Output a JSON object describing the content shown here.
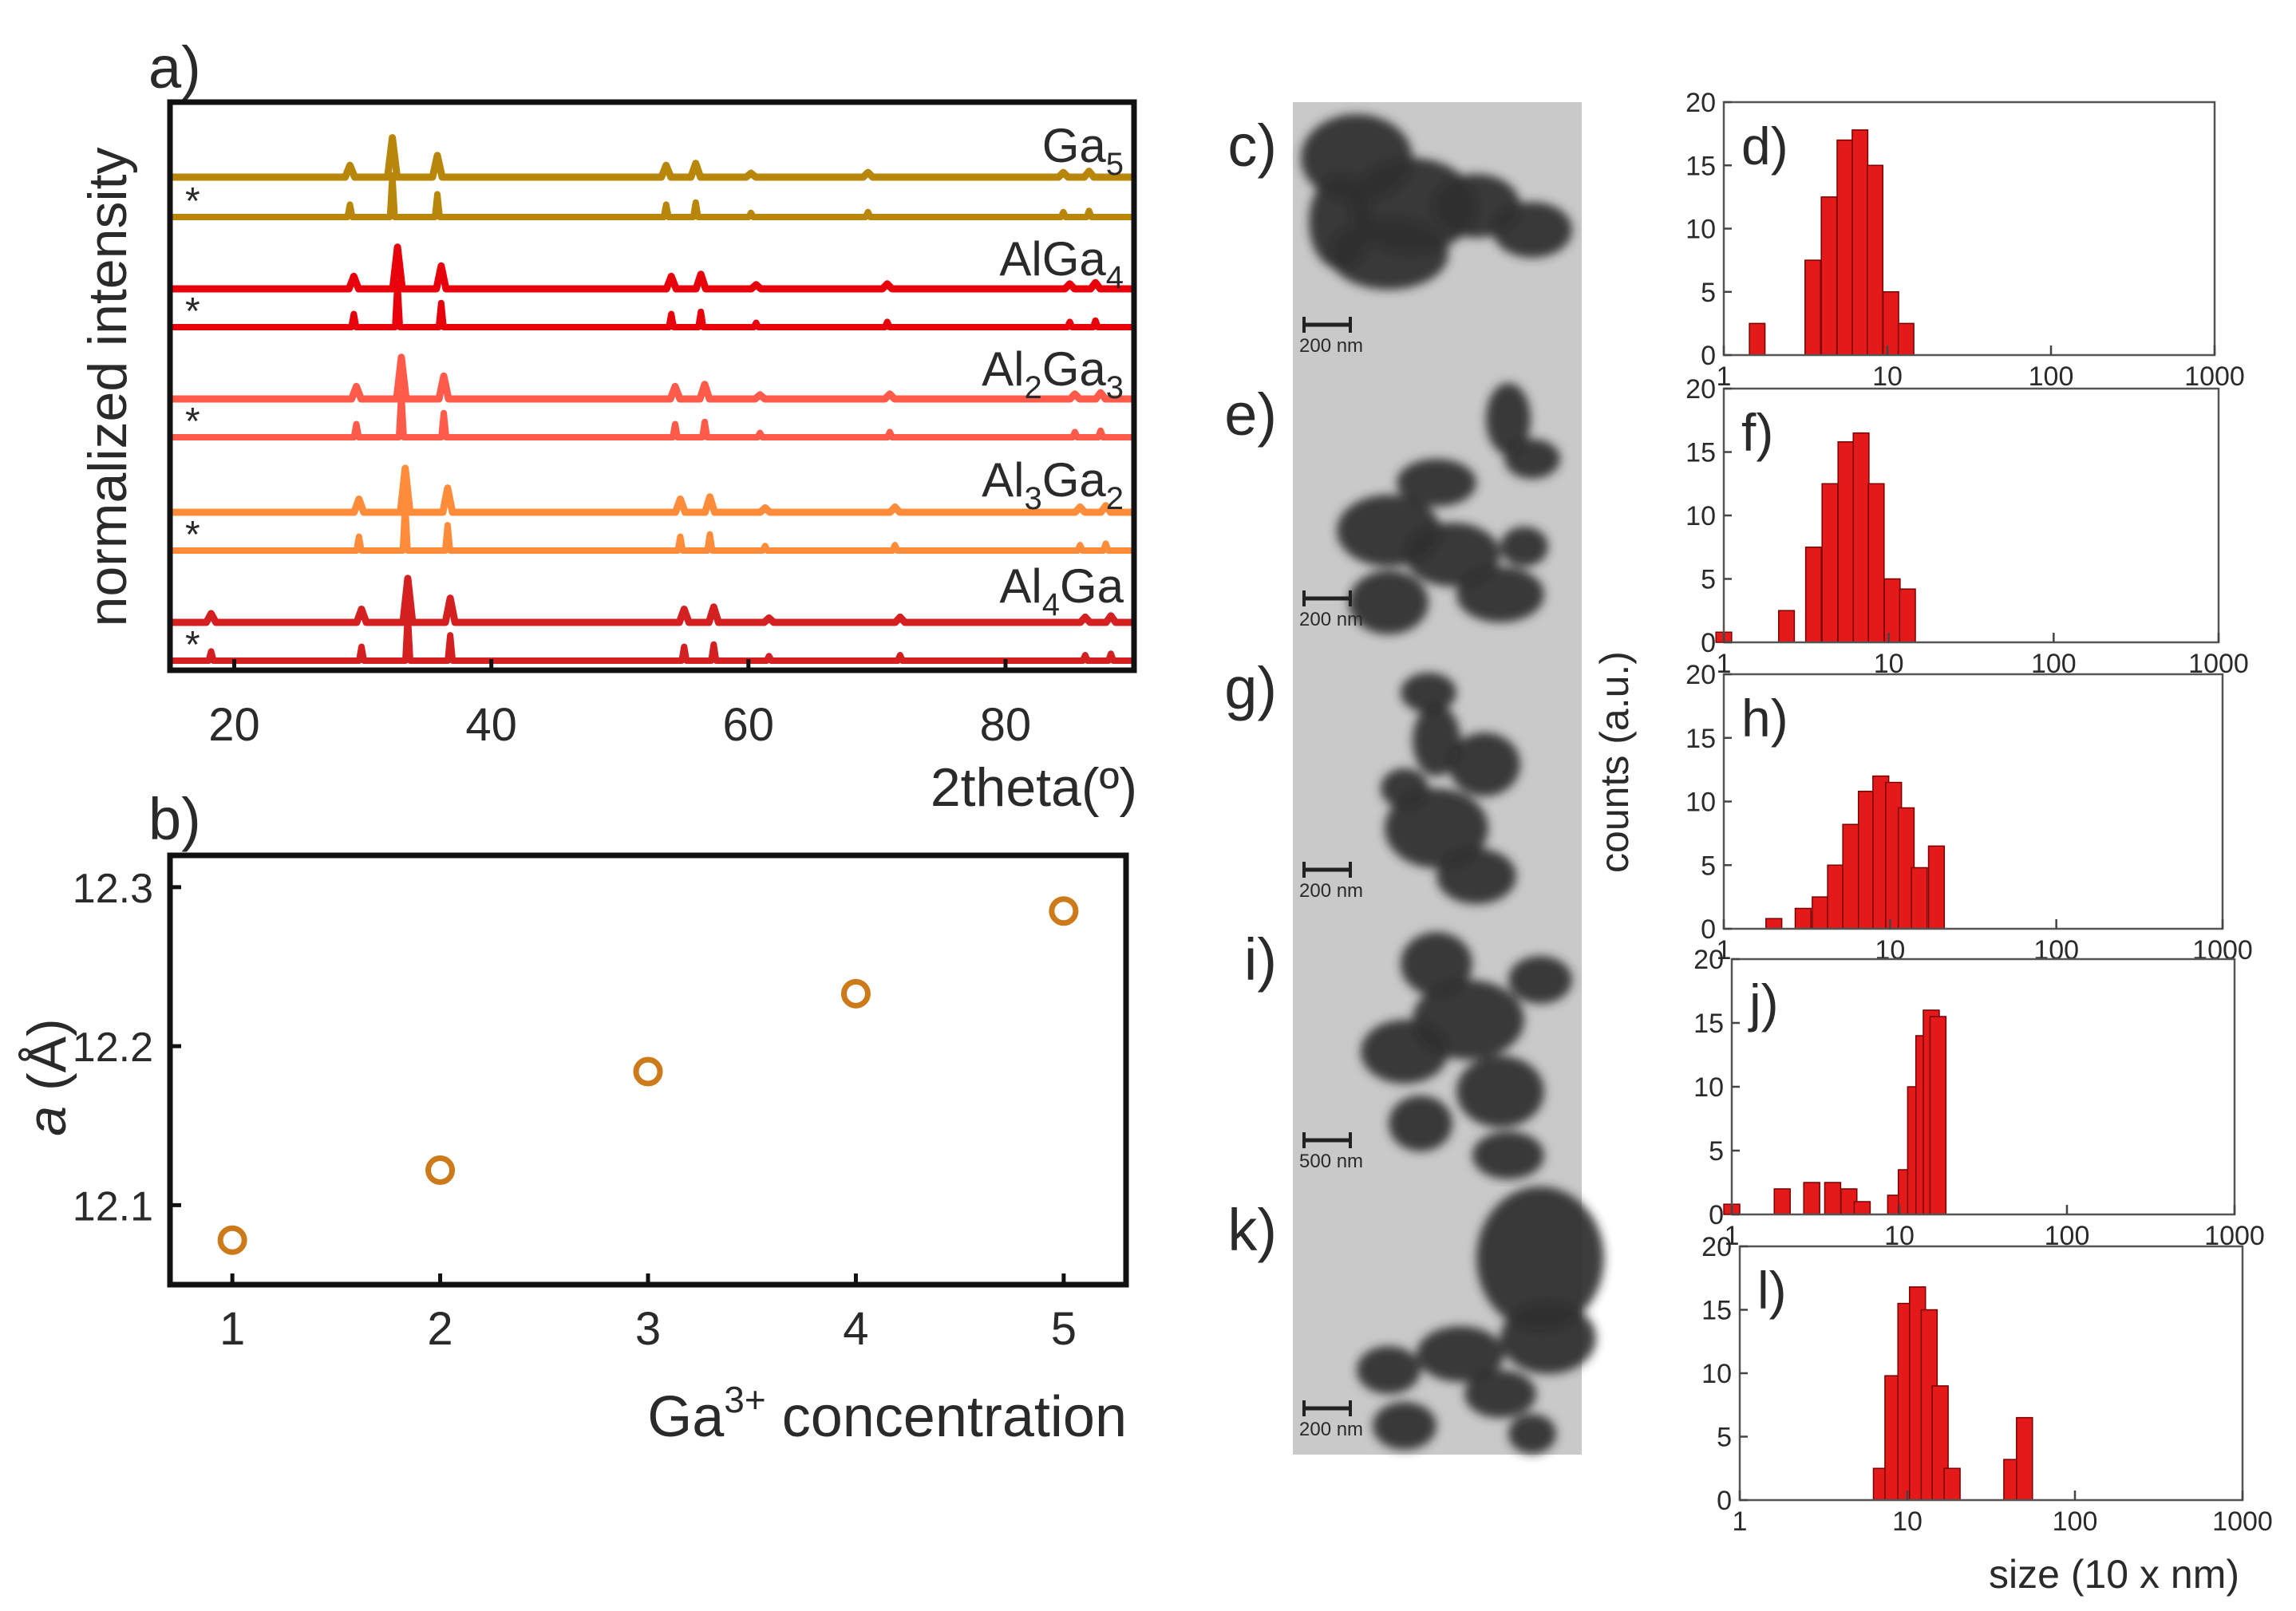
{
  "chart_data": [
    {
      "id": "a",
      "type": "line",
      "panel_label": "a)",
      "xlabel": "2theta(º)",
      "ylabel": "normalized intensity",
      "xlim": [
        15,
        90
      ],
      "xticks": [
        20,
        40,
        60,
        80
      ],
      "xtick_labels": [
        "20",
        "40",
        "60",
        "80"
      ],
      "reference_marker": "*",
      "series": [
        {
          "name": "Ga5",
          "label_base": "Ga",
          "label_sub": "5",
          "color": "#b8860b",
          "peaks": [
            [
              29.0,
              0.3
            ],
            [
              32.3,
              1.0
            ],
            [
              35.8,
              0.55
            ],
            [
              53.6,
              0.3
            ],
            [
              55.9,
              0.35
            ],
            [
              60.2,
              0.1
            ],
            [
              69.3,
              0.12
            ],
            [
              84.5,
              0.12
            ],
            [
              86.5,
              0.15
            ]
          ]
        },
        {
          "name": "AlGa4",
          "label_base": "AlGa",
          "label_sub": "4",
          "color": "#e8000b",
          "peaks": [
            [
              29.3,
              0.3
            ],
            [
              32.7,
              1.0
            ],
            [
              36.1,
              0.55
            ],
            [
              54.0,
              0.3
            ],
            [
              56.3,
              0.35
            ],
            [
              60.6,
              0.1
            ],
            [
              70.8,
              0.12
            ],
            [
              85.0,
              0.12
            ],
            [
              87.0,
              0.15
            ]
          ]
        },
        {
          "name": "Al2Ga3",
          "label_base": "Al",
          "label_sub": "2",
          "label_base2": "Ga",
          "label_sub2": "3",
          "color": "#ff5a4a",
          "peaks": [
            [
              29.5,
              0.3
            ],
            [
              33.0,
              1.0
            ],
            [
              36.3,
              0.55
            ],
            [
              54.3,
              0.3
            ],
            [
              56.6,
              0.35
            ],
            [
              60.9,
              0.1
            ],
            [
              71.0,
              0.12
            ],
            [
              85.4,
              0.12
            ],
            [
              87.4,
              0.15
            ]
          ]
        },
        {
          "name": "Al3Ga2",
          "label_base": "Al",
          "label_sub": "3",
          "label_base2": "Ga",
          "label_sub2": "2",
          "color": "#ff8c3a",
          "peaks": [
            [
              29.7,
              0.3
            ],
            [
              33.3,
              1.0
            ],
            [
              36.6,
              0.55
            ],
            [
              54.7,
              0.3
            ],
            [
              57.0,
              0.35
            ],
            [
              61.3,
              0.1
            ],
            [
              71.4,
              0.12
            ],
            [
              85.8,
              0.12
            ],
            [
              87.8,
              0.15
            ]
          ]
        },
        {
          "name": "Al4Ga",
          "label_base": "Al",
          "label_sub": "4",
          "label_base2": "Ga",
          "label_sub2": "",
          "color": "#d42020",
          "peaks": [
            [
              18.2,
              0.2
            ],
            [
              29.9,
              0.3
            ],
            [
              33.5,
              1.0
            ],
            [
              36.8,
              0.55
            ],
            [
              55.0,
              0.3
            ],
            [
              57.3,
              0.35
            ],
            [
              61.6,
              0.1
            ],
            [
              71.8,
              0.12
            ],
            [
              86.2,
              0.12
            ],
            [
              88.2,
              0.15
            ]
          ]
        }
      ]
    },
    {
      "id": "b",
      "type": "scatter",
      "panel_label": "b)",
      "xlabel_base": "Ga",
      "xlabel_sup": "3+",
      "xlabel_rest": " concentration",
      "ylabel_var": "a",
      "ylabel_unit": " (Å)",
      "xlim": [
        0.7,
        5.3
      ],
      "ylim": [
        12.05,
        12.32
      ],
      "xticks": [
        1,
        2,
        3,
        4,
        5
      ],
      "yticks": [
        12.1,
        12.2,
        12.3
      ],
      "ytick_labels": [
        "12.1",
        "12.2",
        "12.3"
      ],
      "x": [
        1,
        2,
        3,
        4,
        5
      ],
      "y": [
        12.078,
        12.122,
        12.184,
        12.233,
        12.285
      ],
      "marker_color": "#cc7a1a"
    },
    {
      "id": "d",
      "type": "bar",
      "panel_label": "d)",
      "xscale": "log",
      "xlim": [
        1,
        1000
      ],
      "ylim": [
        0,
        20
      ],
      "xticks": [
        1,
        10,
        100,
        1000
      ],
      "xtick_labels": [
        "1",
        "10",
        "100",
        "1000"
      ],
      "yticks": [
        0,
        5,
        10,
        15,
        20
      ],
      "ytick_labels": [
        "0",
        "5",
        "10",
        "15",
        "20"
      ],
      "bins": [
        1.6,
        2.5,
        3.5,
        4.4,
        5.5,
        6.8,
        8.4,
        10.5,
        13
      ],
      "values": [
        2.5,
        0,
        7.5,
        12.5,
        17,
        17.8,
        15,
        5,
        2.5
      ],
      "bar_color": "#e41a1a"
    },
    {
      "id": "f",
      "type": "bar",
      "panel_label": "f)",
      "xscale": "log",
      "xlim": [
        1,
        1000
      ],
      "ylim": [
        0,
        20
      ],
      "xticks": [
        1,
        10,
        100,
        1000
      ],
      "xtick_labels": [
        "1",
        "10",
        "100",
        "1000"
      ],
      "yticks": [
        0,
        5,
        10,
        15,
        20
      ],
      "ytick_labels": [
        "0",
        "5",
        "10",
        "15",
        "20"
      ],
      "bins": [
        1,
        2.4,
        3.5,
        4.4,
        5.5,
        6.8,
        8.4,
        10.5,
        13
      ],
      "values": [
        0.8,
        2.5,
        7.5,
        12.5,
        15.8,
        16.5,
        12.5,
        5,
        4.2
      ],
      "bar_color": "#e41a1a"
    },
    {
      "id": "h",
      "type": "bar",
      "panel_label": "h)",
      "xscale": "log",
      "xlim": [
        1,
        1000
      ],
      "ylim": [
        0,
        20
      ],
      "xticks": [
        1,
        10,
        100,
        1000
      ],
      "xtick_labels": [
        "1",
        "10",
        "100",
        "1000"
      ],
      "yticks": [
        0,
        5,
        10,
        15,
        20
      ],
      "ytick_labels": [
        "0",
        "5",
        "10",
        "15",
        "20"
      ],
      "bins": [
        2,
        3,
        3.8,
        4.7,
        5.8,
        7.2,
        8.8,
        10.5,
        12.5,
        15,
        19
      ],
      "values": [
        0.8,
        1.6,
        2.5,
        5,
        8.2,
        10.8,
        12,
        11.5,
        9.5,
        4.8,
        6.5
      ],
      "bar_color": "#e41a1a"
    },
    {
      "id": "j",
      "type": "bar",
      "panel_label": "j)",
      "xscale": "log",
      "xlim": [
        1,
        1000
      ],
      "ylim": [
        0,
        20
      ],
      "xticks": [
        1,
        10,
        100,
        1000
      ],
      "xtick_labels": [
        "1",
        "10",
        "100",
        "1000"
      ],
      "yticks": [
        0,
        5,
        10,
        15,
        20
      ],
      "ytick_labels": [
        "0",
        "5",
        "10",
        "15",
        "20"
      ],
      "bins": [
        1,
        2,
        3,
        4,
        5,
        6,
        9.5,
        11,
        12.5,
        14,
        15.5,
        17
      ],
      "values": [
        0.8,
        2,
        2.5,
        2.5,
        2,
        1,
        1.5,
        3.5,
        10,
        14,
        16,
        15.5
      ],
      "bar_color": "#e41a1a"
    },
    {
      "id": "l",
      "type": "bar",
      "panel_label": "l)",
      "xscale": "log",
      "xlim": [
        1,
        1000
      ],
      "ylim": [
        0,
        20
      ],
      "xticks": [
        1,
        10,
        100,
        1000
      ],
      "xtick_labels": [
        "1",
        "10",
        "100",
        "1000"
      ],
      "yticks": [
        0,
        5,
        10,
        15,
        20
      ],
      "ytick_labels": [
        "0",
        "5",
        "10",
        "15",
        "20"
      ],
      "xlabel": "size (10 x nm)",
      "bins": [
        7,
        8.2,
        9.8,
        11.5,
        13.5,
        15.7,
        18.5,
        42,
        50
      ],
      "values": [
        2.5,
        9.8,
        15.5,
        16.8,
        15,
        9,
        2.5,
        3.2,
        6.5
      ],
      "bar_color": "#e41a1a"
    }
  ],
  "tem_images": [
    {
      "panel_label": "c)",
      "scale_label": "200 nm"
    },
    {
      "panel_label": "e)",
      "scale_label": "200 nm"
    },
    {
      "panel_label": "g)",
      "scale_label": "200 nm"
    },
    {
      "panel_label": "i)",
      "scale_label": "500 nm"
    },
    {
      "panel_label": "k)",
      "scale_label": "200 nm"
    }
  ],
  "histogram_ylabel": "counts (a.u.)"
}
